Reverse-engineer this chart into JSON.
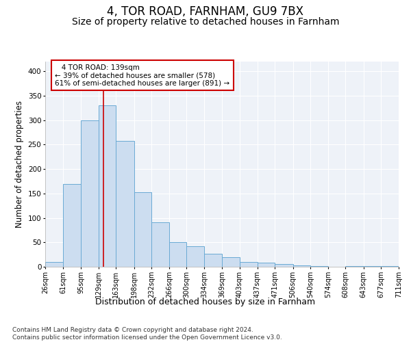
{
  "title": "4, TOR ROAD, FARNHAM, GU9 7BX",
  "subtitle": "Size of property relative to detached houses in Farnham",
  "xlabel": "Distribution of detached houses by size in Farnham",
  "ylabel": "Number of detached properties",
  "bar_color": "#ccddf0",
  "bar_edge_color": "#6aaad4",
  "vline_color": "#cc0000",
  "vline_x": 139,
  "annotation_line1": "   4 TOR ROAD: 139sqm",
  "annotation_line2": "← 39% of detached houses are smaller (578)",
  "annotation_line3": "61% of semi-detached houses are larger (891) →",
  "annotation_box_color": "white",
  "annotation_box_edge": "#cc0000",
  "footer": "Contains HM Land Registry data © Crown copyright and database right 2024.\nContains public sector information licensed under the Open Government Licence v3.0.",
  "bins": [
    26,
    61,
    95,
    129,
    163,
    198,
    232,
    266,
    300,
    334,
    369,
    403,
    437,
    471,
    506,
    540,
    574,
    608,
    643,
    677,
    711
  ],
  "counts": [
    10,
    170,
    300,
    330,
    258,
    152,
    91,
    50,
    42,
    27,
    20,
    10,
    8,
    5,
    3,
    2,
    0,
    2,
    1,
    1
  ],
  "ylim": [
    0,
    420
  ],
  "yticks": [
    0,
    50,
    100,
    150,
    200,
    250,
    300,
    350,
    400
  ],
  "background_color": "#eef2f8",
  "grid_color": "#ffffff",
  "title_fontsize": 12,
  "subtitle_fontsize": 10,
  "tick_label_fontsize": 7,
  "ylabel_fontsize": 8.5,
  "xlabel_fontsize": 9,
  "footer_fontsize": 6.5
}
